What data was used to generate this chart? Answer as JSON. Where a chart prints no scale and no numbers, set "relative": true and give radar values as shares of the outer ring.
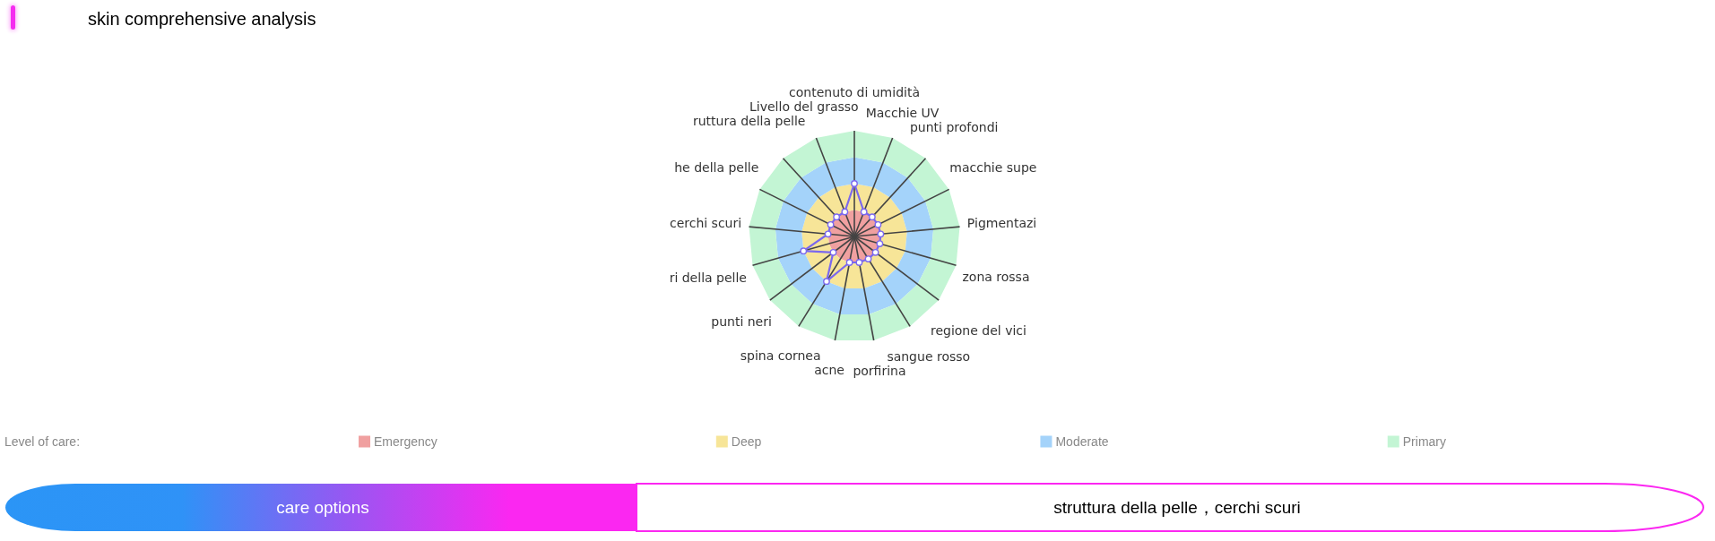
{
  "chart_data": {
    "type": "radar",
    "title": "skin comprehensive analysis",
    "categories": [
      "contenuto di umidità",
      "Macchie UV",
      "punti profondi",
      "macchie supe",
      "Pigmentazi",
      "zona rossa",
      "regione del vici",
      "sangue rosso",
      "porfirina",
      "acne",
      "spina cornea",
      "punti neri",
      "ri della pelle",
      "cerchi scuri",
      "he della pelle",
      "ruttura della pelle",
      "Livello del grasso"
    ],
    "relative": true,
    "series": [
      {
        "color": "#7b68ee",
        "values": [
          0.5,
          0.25,
          0.25,
          0.25,
          0.25,
          0.25,
          0.25,
          0.25,
          0.25,
          0.25,
          0.5,
          0.25,
          0.5,
          0.25,
          0.25,
          0.25,
          0.25
        ]
      }
    ],
    "marker": "circle",
    "bands": [
      {
        "axis": "y",
        "label": "Emergency",
        "color": "#f0a0a0"
      },
      {
        "axis": "y",
        "label": "Deep",
        "color": "#f7e598"
      },
      {
        "axis": "y",
        "label": "Moderate",
        "color": "#a4d3fa"
      },
      {
        "axis": "y",
        "label": "Primary",
        "color": "#c3f5d4"
      }
    ],
    "legend_title": "Level of care:",
    "annotations": [
      "care options",
      "struttura della pelle，cerchi scuri"
    ]
  }
}
